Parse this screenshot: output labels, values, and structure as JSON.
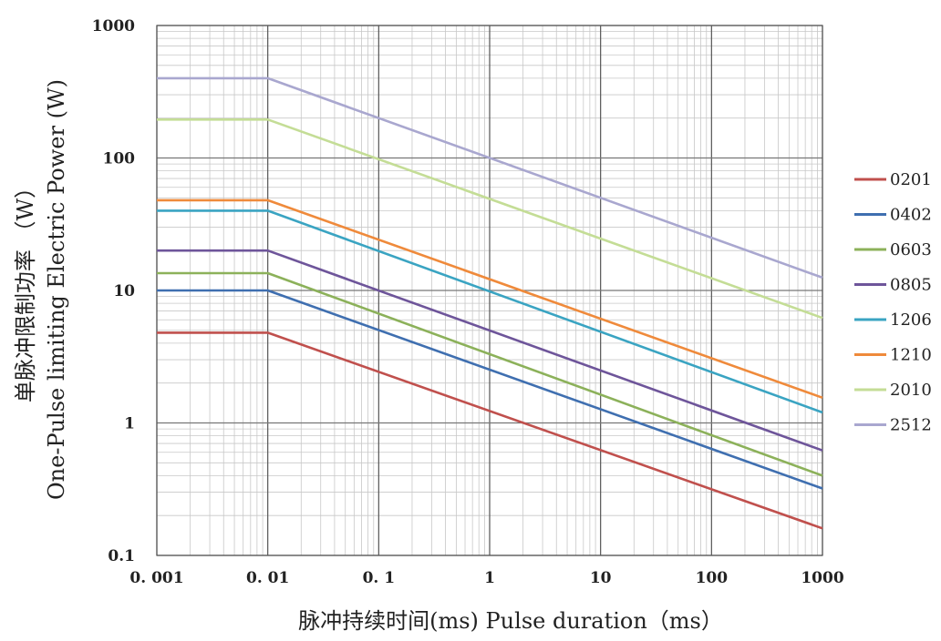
{
  "chart_data": {
    "type": "line",
    "title": "",
    "xscale": "log",
    "yscale": "log",
    "xlim": [
      0.001,
      1000
    ],
    "ylim": [
      0.1,
      1000
    ],
    "grid": true,
    "legend_position": "right",
    "xlabel": "脉冲持续时间(ms) Pulse duration（ms）",
    "ylabel": "单脉冲限制功率 （W）",
    "ylabel_en": "One-Pulse limiting Electric Power (W)",
    "x_tick_labels": [
      "0. 001",
      "0. 01",
      "0. 1",
      "1",
      "10",
      "100",
      "1000"
    ],
    "x_tick_values": [
      0.001,
      0.01,
      0.1,
      1,
      10,
      100,
      1000
    ],
    "y_tick_labels": [
      "0.1",
      "1",
      "10",
      "100",
      "1000"
    ],
    "y_tick_values": [
      0.1,
      1,
      10,
      100,
      1000
    ],
    "series": [
      {
        "name": "0201",
        "color": "#c0504d",
        "x": [
          0.001,
          0.01,
          1000
        ],
        "y": [
          4.8,
          4.8,
          0.16
        ]
      },
      {
        "name": "0402",
        "color": "#3f6fb0",
        "x": [
          0.001,
          0.01,
          1000
        ],
        "y": [
          10,
          10,
          0.32
        ]
      },
      {
        "name": "0603",
        "color": "#8cb15a",
        "x": [
          0.001,
          0.01,
          1000
        ],
        "y": [
          13.5,
          13.5,
          0.4
        ]
      },
      {
        "name": "0805",
        "color": "#6e559a",
        "x": [
          0.001,
          0.01,
          1000
        ],
        "y": [
          20,
          20,
          0.62
        ]
      },
      {
        "name": "1206",
        "color": "#3aa4c2",
        "x": [
          0.001,
          0.01,
          1000
        ],
        "y": [
          40,
          40,
          1.2
        ]
      },
      {
        "name": "1210",
        "color": "#ef8a3b",
        "x": [
          0.001,
          0.01,
          1000
        ],
        "y": [
          48,
          48,
          1.55
        ]
      },
      {
        "name": "2010",
        "color": "#c4dd96",
        "x": [
          0.001,
          0.01,
          1000
        ],
        "y": [
          195,
          195,
          6.2
        ]
      },
      {
        "name": "2512",
        "color": "#a9a7cf",
        "x": [
          0.001,
          0.01,
          1000
        ],
        "y": [
          400,
          400,
          12.5
        ]
      }
    ]
  }
}
